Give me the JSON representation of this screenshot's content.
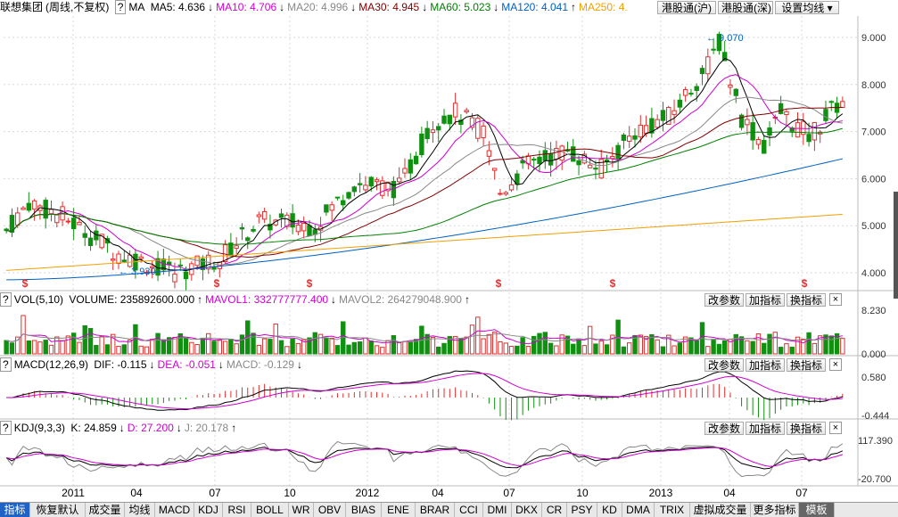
{
  "main_header": {
    "stock_name": "联想集团",
    "period": "(周线,不复权)",
    "toggle": "?",
    "ma_label": "MA",
    "items": [
      {
        "text": "MA5: 4.636",
        "arrow": "↓",
        "color": "#000000"
      },
      {
        "text": "MA10: 4.706",
        "arrow": "↓",
        "color": "#d000d0"
      },
      {
        "text": "MA20: 4.996",
        "arrow": "↓",
        "color": "#888888"
      },
      {
        "text": "MA30: 4.945",
        "arrow": "↓",
        "color": "#800000"
      },
      {
        "text": "MA60: 5.023",
        "arrow": "↓",
        "color": "#008000"
      },
      {
        "text": "MA120: 4.041",
        "arrow": "↑",
        "color": "#0060c0"
      },
      {
        "text": "MA250: 4.",
        "arrow": "",
        "color": "#f0a000"
      }
    ],
    "buttons": [
      "港股通(沪)",
      "港股通(深)",
      "设置均线 ▾"
    ]
  },
  "vol_header": {
    "toggle": "?",
    "label": "VOL(5,10)",
    "items": [
      {
        "text": "VOLUME: 235892600.000",
        "arrow": "↑",
        "color": "#000000"
      },
      {
        "text": "MAVOL1: 332777777.400",
        "arrow": "↓",
        "color": "#d000d0"
      },
      {
        "text": "MAVOL2: 264279048.900",
        "arrow": "↑",
        "color": "#888888"
      }
    ]
  },
  "macd_header": {
    "toggle": "?",
    "label": "MACD(12,26,9)",
    "items": [
      {
        "text": "DIF: -0.115",
        "arrow": "↓",
        "color": "#000000"
      },
      {
        "text": "DEA: -0.051",
        "arrow": "↓",
        "color": "#d000d0"
      },
      {
        "text": "MACD: -0.129",
        "arrow": "↓",
        "color": "#888888"
      }
    ]
  },
  "kdj_header": {
    "toggle": "?",
    "label": "KDJ(9,3,3)",
    "items": [
      {
        "text": "K: 24.859",
        "arrow": "↓",
        "color": "#000000"
      },
      {
        "text": "D: 27.200",
        "arrow": "↓",
        "color": "#d000d0"
      },
      {
        "text": "J: 20.178",
        "arrow": "↑",
        "color": "#888888"
      }
    ]
  },
  "panel_buttons": [
    "改参数",
    "加指标",
    "换指标"
  ],
  "close_glyph": "×",
  "price_axis": [
    "9.000",
    "8.000",
    "7.000",
    "6.000",
    "5.000",
    "4.000"
  ],
  "vol_axis": [
    "8.230",
    "0.000"
  ],
  "macd_axis": [
    "0.580",
    "-0.444"
  ],
  "kdj_axis": [
    "117.390",
    "-20.700"
  ],
  "annotations": {
    "high": "9.070",
    "low": "3.930"
  },
  "dividend_marker": "$",
  "time_axis": [
    "2011",
    "04",
    "07",
    "10",
    "2012",
    "04",
    "07",
    "10",
    "2013",
    "04",
    "07"
  ],
  "tabs": [
    "指标",
    "恢复默认",
    "成交量",
    "均线",
    "MACD",
    "KDJ",
    "RSI",
    "BOLL",
    "WR",
    "OBV",
    "BIAS",
    "ENE",
    "BRAR",
    "CCI",
    "DMI",
    "DKX",
    "CR",
    "PSY",
    "KD",
    "DMA",
    "TRIX",
    "虚拟成交量",
    "更多指标",
    "模板"
  ],
  "colors": {
    "up": "#e03030",
    "down": "#109010",
    "grid": "#d8d8d8",
    "ma5": "#000000",
    "ma10": "#d000d0",
    "ma20": "#888888",
    "ma30": "#800000",
    "ma60": "#008000",
    "ma120": "#0060c0",
    "ma250": "#f0a000",
    "dividend": "#e03030"
  }
}
